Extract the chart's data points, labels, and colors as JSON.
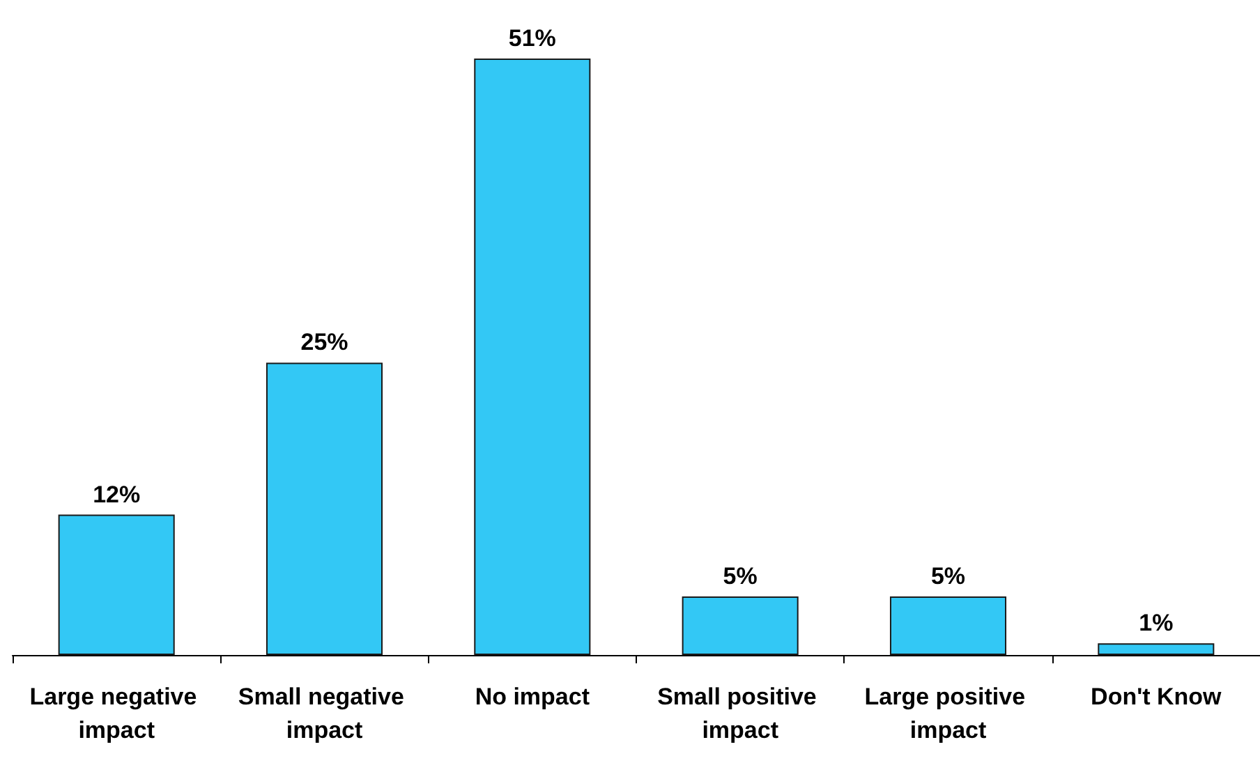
{
  "chart_data": {
    "type": "bar",
    "categories": [
      "Large negative impact",
      "Small negative impact",
      "No impact",
      "Small positive impact",
      "Large positive impact",
      "Don't Know"
    ],
    "values": [
      12,
      25,
      51,
      5,
      5,
      1
    ],
    "value_labels": [
      "12%",
      "25%",
      "51%",
      "5%",
      "5%",
      "1%"
    ],
    "color": "#33c8f5",
    "ylim": [
      0,
      51
    ],
    "tick_labels": "x",
    "grid": false
  }
}
